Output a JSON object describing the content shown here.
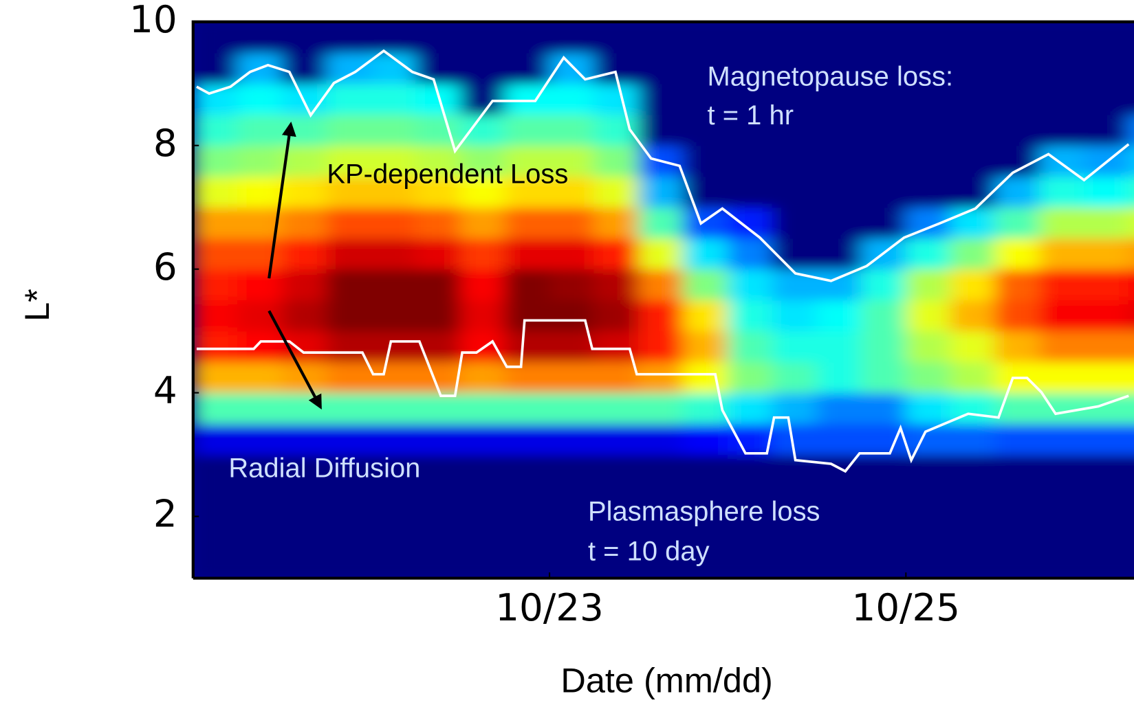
{
  "chart_data": {
    "type": "heatmap",
    "ylabel": "L*",
    "xlabel": "Date (mm/dd)",
    "xlim": [
      21,
      26.28
    ],
    "ylim": [
      1,
      10
    ],
    "xticks": [
      {
        "value": 23,
        "label": "10/23"
      },
      {
        "value": 25,
        "label": "10/25"
      }
    ],
    "yticks": [
      2,
      4,
      6,
      8,
      10
    ],
    "annotations": [
      "Magnetopause loss:",
      "t = 1 hr",
      "KP-dependent Loss",
      "Radial Diffusion",
      "Plasmasphere loss",
      "t = 10 day"
    ],
    "x": [
      21.125,
      21.375,
      21.625,
      21.875,
      22.125,
      22.375,
      22.625,
      22.875,
      23.125,
      23.375,
      23.625,
      23.875,
      24.125,
      24.375,
      24.625,
      24.875,
      25.125,
      25.375,
      25.625,
      25.875,
      26.125,
      26.375
    ],
    "y": [
      1.25,
      1.75,
      2.25,
      2.75,
      3.25,
      3.75,
      4.25,
      4.75,
      5.25,
      5.75,
      6.25,
      6.75,
      7.25,
      7.75,
      8.25,
      8.75,
      9.25,
      9.75
    ],
    "z": [
      [
        0,
        0,
        0,
        0,
        0.1,
        0.45,
        0.7,
        0.85,
        0.88,
        0.85,
        0.8,
        0.72,
        0.6,
        0.5,
        0.42,
        0.35,
        0,
        0
      ],
      [
        0,
        0,
        0,
        0,
        0.1,
        0.45,
        0.7,
        0.87,
        0.9,
        0.87,
        0.8,
        0.72,
        0.62,
        0.52,
        0.45,
        0.38,
        0.3,
        0
      ],
      [
        0,
        0,
        0,
        0,
        0.1,
        0.45,
        0.72,
        0.9,
        0.95,
        0.92,
        0.85,
        0.75,
        0.65,
        0.55,
        0.45,
        0.35,
        0,
        0
      ],
      [
        0,
        0,
        0,
        0,
        0.1,
        0.45,
        0.75,
        0.95,
        1,
        1,
        0.92,
        0.8,
        0.68,
        0.58,
        0.48,
        0.4,
        0.3,
        0
      ],
      [
        0,
        0,
        0,
        0,
        0.1,
        0.45,
        0.75,
        0.95,
        1,
        1,
        0.92,
        0.8,
        0.68,
        0.58,
        0.48,
        0.4,
        0.32,
        0
      ],
      [
        0,
        0,
        0,
        0,
        0.1,
        0.45,
        0.75,
        0.95,
        1,
        1,
        0.9,
        0.78,
        0.66,
        0.56,
        0.46,
        0.38,
        0,
        0
      ],
      [
        0,
        0,
        0,
        0,
        0.1,
        0.45,
        0.72,
        0.88,
        0.9,
        0.88,
        0.82,
        0.72,
        0.62,
        0.52,
        0.42,
        0,
        0,
        0
      ],
      [
        0,
        0,
        0,
        0,
        0.1,
        0.45,
        0.75,
        0.95,
        1,
        1,
        0.9,
        0.78,
        0.66,
        0.56,
        0.46,
        0.38,
        0,
        0
      ],
      [
        0,
        0,
        0,
        0,
        0.1,
        0.45,
        0.75,
        0.95,
        1,
        0.98,
        0.9,
        0.78,
        0.66,
        0.56,
        0.46,
        0.38,
        0.3,
        0
      ],
      [
        0,
        0,
        0,
        0,
        0.1,
        0.45,
        0.75,
        0.92,
        0.97,
        0.95,
        0.85,
        0.72,
        0.6,
        0.5,
        0.42,
        0.35,
        0,
        0
      ],
      [
        0,
        0,
        0,
        0,
        0.1,
        0.45,
        0.72,
        0.85,
        0.85,
        0.75,
        0.6,
        0.45,
        0.3,
        0.2,
        0,
        0,
        0,
        0
      ],
      [
        0,
        0,
        0,
        0,
        0.12,
        0.42,
        0.62,
        0.7,
        0.65,
        0.5,
        0.35,
        0.2,
        0,
        0,
        0,
        0,
        0,
        0
      ],
      [
        0,
        0,
        0,
        0,
        0.15,
        0.35,
        0.5,
        0.45,
        0.4,
        0.35,
        0.25,
        0.15,
        0,
        0,
        0,
        0,
        0,
        0
      ],
      [
        0,
        0,
        0,
        0,
        0.2,
        0.3,
        0.45,
        0.4,
        0.35,
        0.3,
        0,
        0,
        0,
        0,
        0,
        0,
        0,
        0
      ],
      [
        0,
        0,
        0,
        0,
        0.2,
        0.25,
        0.4,
        0.4,
        0.38,
        0.3,
        0,
        0,
        0,
        0,
        0,
        0,
        0,
        0
      ],
      [
        0,
        0,
        0,
        0,
        0.2,
        0.25,
        0.45,
        0.45,
        0.45,
        0.4,
        0.3,
        0,
        0,
        0,
        0,
        0,
        0,
        0
      ],
      [
        0,
        0,
        0,
        0,
        0.22,
        0.35,
        0.5,
        0.55,
        0.6,
        0.55,
        0.4,
        0.25,
        0,
        0,
        0,
        0,
        0,
        0
      ],
      [
        0,
        0,
        0,
        0,
        0.22,
        0.4,
        0.55,
        0.6,
        0.7,
        0.65,
        0.5,
        0.35,
        0,
        0,
        0,
        0,
        0,
        0
      ],
      [
        0,
        0,
        0,
        0,
        0.2,
        0.45,
        0.62,
        0.7,
        0.8,
        0.78,
        0.62,
        0.45,
        0.3,
        0,
        0,
        0,
        0,
        0
      ],
      [
        0,
        0,
        0,
        0,
        0.2,
        0.45,
        0.62,
        0.75,
        0.88,
        0.85,
        0.7,
        0.55,
        0.4,
        0.3,
        0,
        0,
        0,
        0
      ],
      [
        0,
        0,
        0,
        0,
        0.2,
        0.45,
        0.62,
        0.75,
        0.88,
        0.85,
        0.7,
        0.55,
        0.38,
        0.28,
        0,
        0,
        0,
        0
      ],
      [
        0,
        0,
        0,
        0,
        0.2,
        0.45,
        0.62,
        0.75,
        0.9,
        0.88,
        0.72,
        0.58,
        0.42,
        0.32,
        0.25,
        0,
        0,
        0
      ]
    ],
    "series": [
      {
        "color": "#ffffff",
        "x": [
          21.02,
          21.09,
          21.21,
          21.32,
          21.42,
          21.54,
          21.66,
          21.79,
          21.91,
          22.07,
          22.23,
          22.35,
          22.47,
          22.68,
          22.92,
          23.08,
          23.2,
          23.37,
          23.45,
          23.57,
          23.73,
          23.85,
          23.97,
          24.18,
          24.38,
          24.58,
          24.78,
          24.99,
          25.19,
          25.39,
          25.6,
          25.8,
          26.0,
          26.25
        ],
        "values": [
          8.95,
          8.84,
          8.95,
          9.19,
          9.3,
          9.19,
          8.49,
          9.01,
          9.19,
          9.53,
          9.19,
          9.07,
          7.91,
          8.72,
          8.72,
          9.42,
          9.07,
          9.19,
          8.26,
          7.79,
          7.67,
          6.74,
          6.98,
          6.51,
          5.93,
          5.81,
          6.05,
          6.51,
          6.74,
          6.98,
          7.56,
          7.86,
          7.44,
          8.02
        ]
      },
      {
        "color": "#ffffff",
        "x": [
          21.02,
          21.34,
          21.38,
          21.54,
          21.62,
          21.95,
          22.01,
          22.07,
          22.11,
          22.27,
          22.39,
          22.47,
          22.51,
          22.59,
          22.68,
          22.76,
          22.84,
          22.86,
          23.2,
          23.24,
          23.45,
          23.49,
          23.93,
          23.97,
          24.1,
          24.22,
          24.26,
          24.34,
          24.38,
          24.58,
          24.66,
          24.74,
          24.91,
          24.97,
          25.03,
          25.11,
          25.35,
          25.52,
          25.6,
          25.68,
          25.76,
          25.84,
          26.08,
          26.25
        ],
        "values": [
          4.71,
          4.71,
          4.83,
          4.83,
          4.65,
          4.65,
          4.3,
          4.3,
          4.83,
          4.83,
          3.95,
          3.95,
          4.65,
          4.65,
          4.83,
          4.42,
          4.42,
          5.17,
          5.17,
          4.71,
          4.71,
          4.3,
          4.3,
          3.72,
          3.02,
          3.02,
          3.6,
          3.6,
          2.91,
          2.85,
          2.73,
          3.02,
          3.02,
          3.43,
          2.91,
          3.37,
          3.66,
          3.6,
          4.24,
          4.24,
          4.01,
          3.66,
          3.78,
          3.95
        ]
      }
    ]
  }
}
